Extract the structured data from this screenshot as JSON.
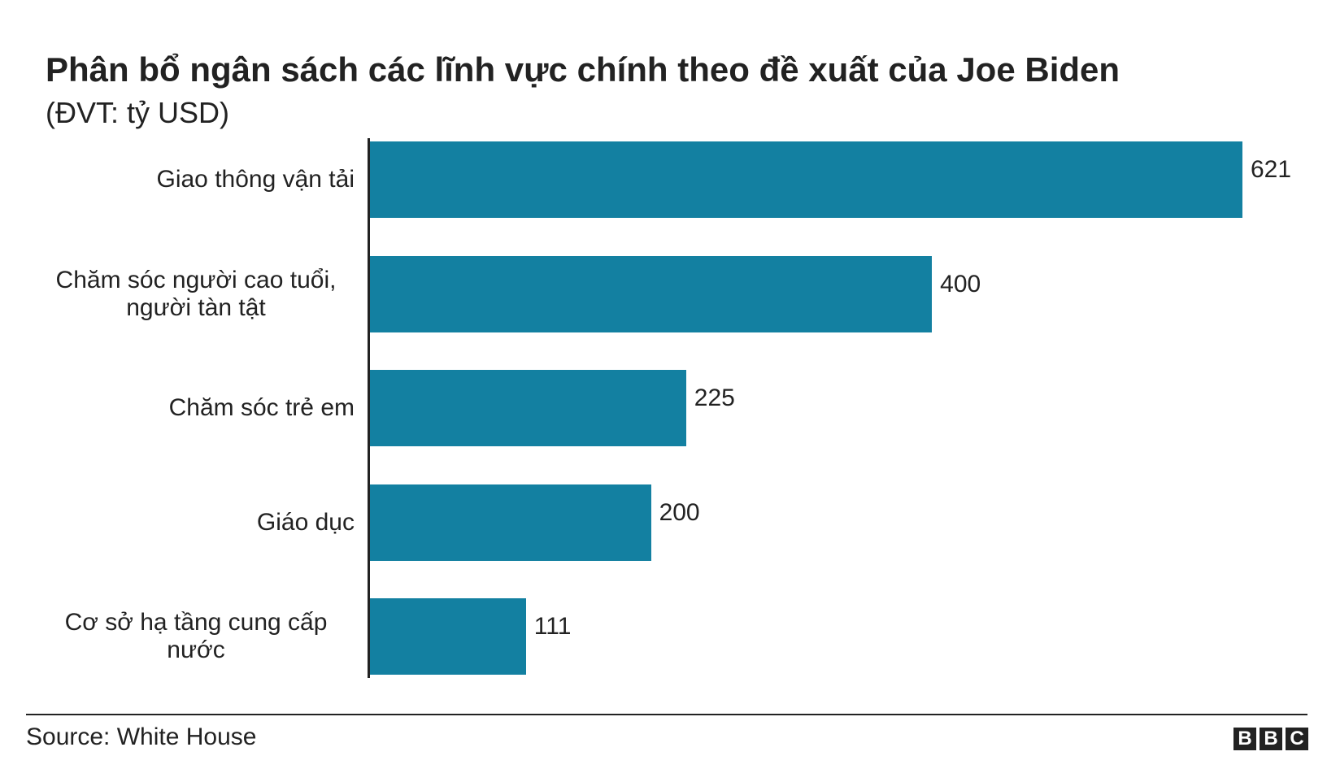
{
  "chart_data": {
    "type": "bar",
    "orientation": "horizontal",
    "title": "Phân bổ ngân sách các lĩnh vực chính theo đề xuất của Joe Biden",
    "subtitle": "(ĐVT: tỷ USD)",
    "categories": [
      "Giao thông vận tải",
      "Chăm sóc người cao tuổi, người tàn tật",
      "Chăm sóc trẻ em",
      "Giáo dục",
      "Cơ sở hạ tầng cung cấp nước"
    ],
    "values": [
      621,
      400,
      225,
      200,
      111
    ],
    "color": "#1380a1",
    "source": "Source: White House",
    "logo": [
      "B",
      "B",
      "C"
    ]
  }
}
